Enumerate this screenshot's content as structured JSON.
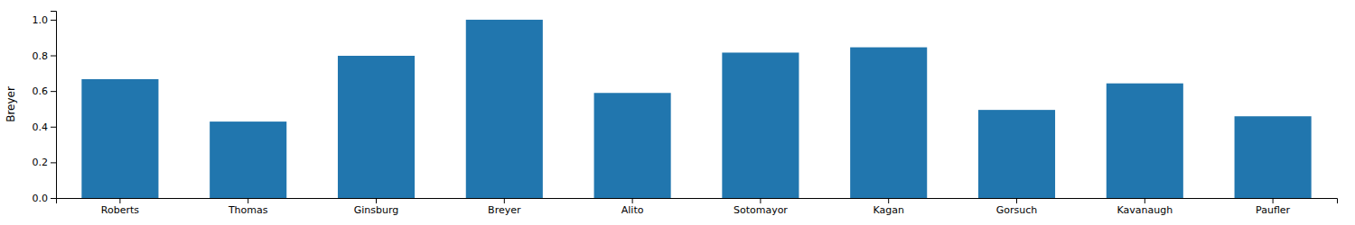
{
  "chart_data": {
    "type": "bar",
    "categories": [
      "Roberts",
      "Thomas",
      "Ginsburg",
      "Breyer",
      "Alito",
      "Sotomayor",
      "Kagan",
      "Gorsuch",
      "Kavanaugh",
      "Paufler"
    ],
    "values": [
      0.6666666666666666,
      0.42857142857142855,
      0.7976190476190477,
      1.0,
      0.5892857142857143,
      0.8154761904761905,
      0.8452380952380952,
      0.49404761904761907,
      0.6428571428571429,
      0.4583333333333333
    ],
    "color": "#2176ae",
    "ylabel": "Breyer",
    "ylim": [
      0.0,
      1.05
    ],
    "yticks": [
      {
        "value": 0.0,
        "label": "0.0"
      },
      0.2,
      0.4,
      0.6,
      0.8,
      {
        "value": 1.0,
        "label": "1.0"
      }
    ]
  }
}
